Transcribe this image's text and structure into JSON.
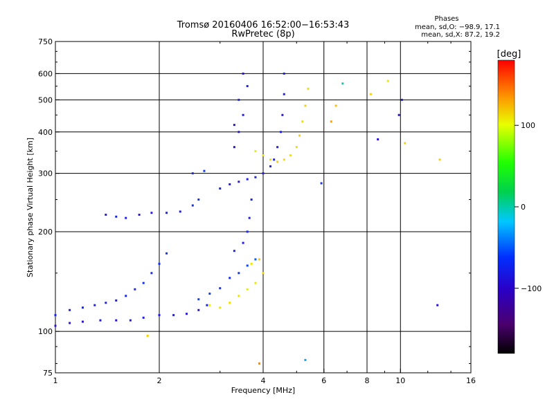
{
  "chart_data": {
    "type": "scatter",
    "title": "Tromsø 20160406 16:52:00−16:53:43",
    "subtitle": "RwPretec (8p)",
    "xlabel": "Frequency [MHz]",
    "ylabel": "Stationary phase Virtual Height [km]",
    "x_scale": "log",
    "y_scale": "log",
    "xlim": [
      1,
      16
    ],
    "ylim": [
      75,
      750
    ],
    "grid": true,
    "x_ticks": [
      1,
      2,
      4,
      6,
      8,
      10,
      16
    ],
    "x_tick_labels": [
      "1",
      "2",
      "4",
      "6",
      "8",
      "10",
      "16"
    ],
    "y_ticks": [
      75,
      100,
      200,
      300,
      400,
      500,
      600,
      750
    ],
    "y_tick_labels": [
      "75",
      "100",
      "200",
      "300",
      "400",
      "500",
      "600",
      "750"
    ],
    "x_gridlines": [
      2,
      4,
      6,
      8,
      10
    ],
    "y_gridlines": [
      100,
      200,
      300,
      400,
      500,
      600
    ],
    "phase_box": {
      "title": "Phases",
      "line_o": "mean, sd,O: −98.9, 17.1",
      "line_x": "mean, sd,X:  87.2, 19.2"
    },
    "colorbar": {
      "label": "[deg]",
      "min": -180,
      "max": 180,
      "ticks": [
        100,
        0,
        -100
      ],
      "tick_labels": [
        "100",
        "0",
        "−100"
      ],
      "colormap": "rainbow (black → purple → blue → cyan → green → yellow → red)"
    },
    "series": [
      {
        "values": [
          [
            1.0,
            104,
            -110
          ],
          [
            1.1,
            106,
            -105
          ],
          [
            1.2,
            107,
            -110
          ],
          [
            1.35,
            108,
            -105
          ],
          [
            1.5,
            108,
            -110
          ],
          [
            1.65,
            108,
            -105
          ],
          [
            1.8,
            110,
            -100
          ],
          [
            2.0,
            112,
            -105
          ],
          [
            2.2,
            112,
            -100
          ],
          [
            2.4,
            113,
            -105
          ],
          [
            2.6,
            116,
            -110
          ],
          [
            2.75,
            120,
            -100
          ]
        ]
      },
      {
        "values": [
          [
            1.0,
            112,
            -95
          ],
          [
            1.1,
            116,
            -100
          ],
          [
            1.2,
            118,
            -95
          ],
          [
            1.3,
            120,
            -100
          ],
          [
            1.4,
            122,
            -95
          ],
          [
            1.5,
            124,
            -100
          ],
          [
            1.6,
            128,
            -95
          ],
          [
            1.7,
            134,
            -90
          ],
          [
            1.8,
            140,
            -85
          ],
          [
            1.9,
            150,
            -90
          ],
          [
            2.0,
            160,
            -85
          ],
          [
            2.1,
            172,
            -80
          ]
        ]
      },
      {
        "values": [
          [
            2.6,
            125,
            -70
          ],
          [
            2.8,
            130,
            -75
          ],
          [
            3.0,
            135,
            -85
          ],
          [
            3.2,
            145,
            -90
          ],
          [
            3.4,
            150,
            -80
          ],
          [
            3.6,
            158,
            -70
          ],
          [
            3.8,
            165,
            -55
          ],
          [
            3.3,
            175,
            -95
          ],
          [
            3.5,
            185,
            -100
          ],
          [
            3.6,
            200,
            -95
          ],
          [
            3.65,
            220,
            -100
          ],
          [
            3.7,
            250,
            -95
          ]
        ]
      },
      {
        "values": [
          [
            2.8,
            120,
            95
          ],
          [
            3.0,
            118,
            100
          ],
          [
            3.2,
            122,
            105
          ],
          [
            3.4,
            128,
            100
          ],
          [
            3.6,
            134,
            95
          ],
          [
            3.8,
            140,
            100
          ],
          [
            4.0,
            150,
            105
          ],
          [
            3.9,
            165,
            110
          ],
          [
            3.7,
            160,
            100
          ]
        ]
      },
      {
        "values": [
          [
            1.4,
            225,
            -100
          ],
          [
            1.5,
            222,
            -95
          ],
          [
            1.6,
            220,
            -100
          ],
          [
            1.75,
            225,
            -105
          ],
          [
            1.9,
            228,
            -100
          ],
          [
            2.1,
            228,
            -95
          ],
          [
            2.3,
            230,
            -100
          ],
          [
            2.5,
            240,
            -90
          ],
          [
            2.6,
            250,
            -80
          ],
          [
            2.5,
            300,
            -85
          ],
          [
            2.7,
            305,
            -80
          ]
        ]
      },
      {
        "values": [
          [
            3.0,
            270,
            -95
          ],
          [
            3.2,
            278,
            -100
          ],
          [
            3.4,
            283,
            -105
          ],
          [
            3.6,
            288,
            -100
          ],
          [
            3.8,
            292,
            -95
          ],
          [
            4.0,
            300,
            -100
          ],
          [
            4.2,
            315,
            -95
          ],
          [
            4.3,
            330,
            -100
          ],
          [
            4.4,
            360,
            -95
          ],
          [
            4.5,
            400,
            -100
          ],
          [
            4.55,
            450,
            -105
          ],
          [
            4.6,
            520,
            -100
          ],
          [
            4.6,
            600,
            -95
          ]
        ]
      },
      {
        "values": [
          [
            3.3,
            360,
            -110
          ],
          [
            3.4,
            400,
            -105
          ],
          [
            3.5,
            450,
            -100
          ],
          [
            3.4,
            500,
            -95
          ],
          [
            3.6,
            550,
            -100
          ],
          [
            3.5,
            600,
            -105
          ],
          [
            3.3,
            420,
            -110
          ]
        ]
      },
      {
        "values": [
          [
            3.8,
            350,
            95
          ],
          [
            4.0,
            340,
            100
          ],
          [
            4.2,
            330,
            105
          ],
          [
            4.4,
            325,
            110
          ],
          [
            4.6,
            330,
            105
          ],
          [
            4.8,
            340,
            100
          ],
          [
            5.0,
            360,
            105
          ],
          [
            5.1,
            390,
            110
          ],
          [
            5.2,
            430,
            105
          ],
          [
            5.3,
            480,
            110
          ],
          [
            5.4,
            540,
            105
          ]
        ]
      },
      {
        "values": [
          [
            1.85,
            97,
            110
          ],
          [
            3.9,
            80,
            140
          ],
          [
            5.3,
            82,
            -30
          ],
          [
            5.9,
            280,
            -80
          ],
          [
            6.3,
            430,
            130
          ],
          [
            6.5,
            480,
            120
          ],
          [
            6.8,
            560,
            -10
          ],
          [
            8.2,
            520,
            110
          ],
          [
            8.6,
            380,
            -110
          ],
          [
            9.2,
            570,
            100
          ],
          [
            9.9,
            450,
            -110
          ],
          [
            10.1,
            500,
            -100
          ],
          [
            10.3,
            370,
            110
          ],
          [
            13.0,
            330,
            110
          ],
          [
            12.8,
            120,
            -110
          ]
        ]
      }
    ]
  }
}
